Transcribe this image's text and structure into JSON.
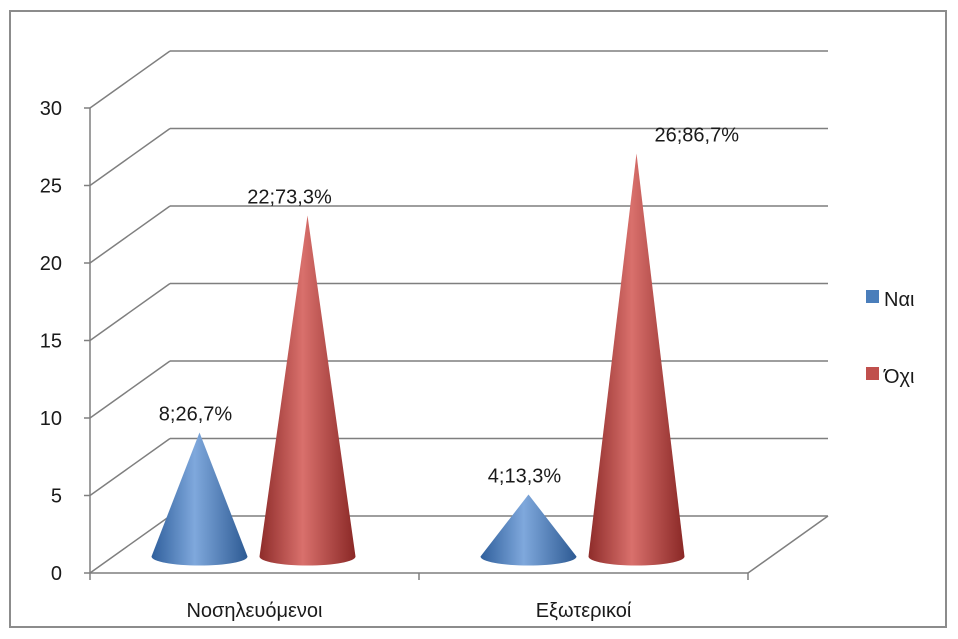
{
  "chart_data": {
    "type": "bar",
    "subtype": "3d-cone",
    "title": "",
    "xlabel": "",
    "ylabel": "",
    "categories": [
      "Νοσηλευόμενοι",
      "Εξωτερικοί"
    ],
    "series": [
      {
        "name": "Ναι",
        "color": "#4a7ebb",
        "values": [
          8,
          4
        ],
        "labels": [
          "8;26,7%",
          "4;13,3%"
        ]
      },
      {
        "name": "Όχι",
        "color": "#c0504d",
        "values": [
          22,
          26
        ],
        "labels": [
          "22;73,3%",
          "26;86,7%"
        ]
      }
    ],
    "ylim": [
      0,
      30
    ],
    "yticks": [
      "0",
      "5",
      "10",
      "15",
      "20",
      "25",
      "30"
    ],
    "grid": true,
    "legend_position": "right"
  }
}
